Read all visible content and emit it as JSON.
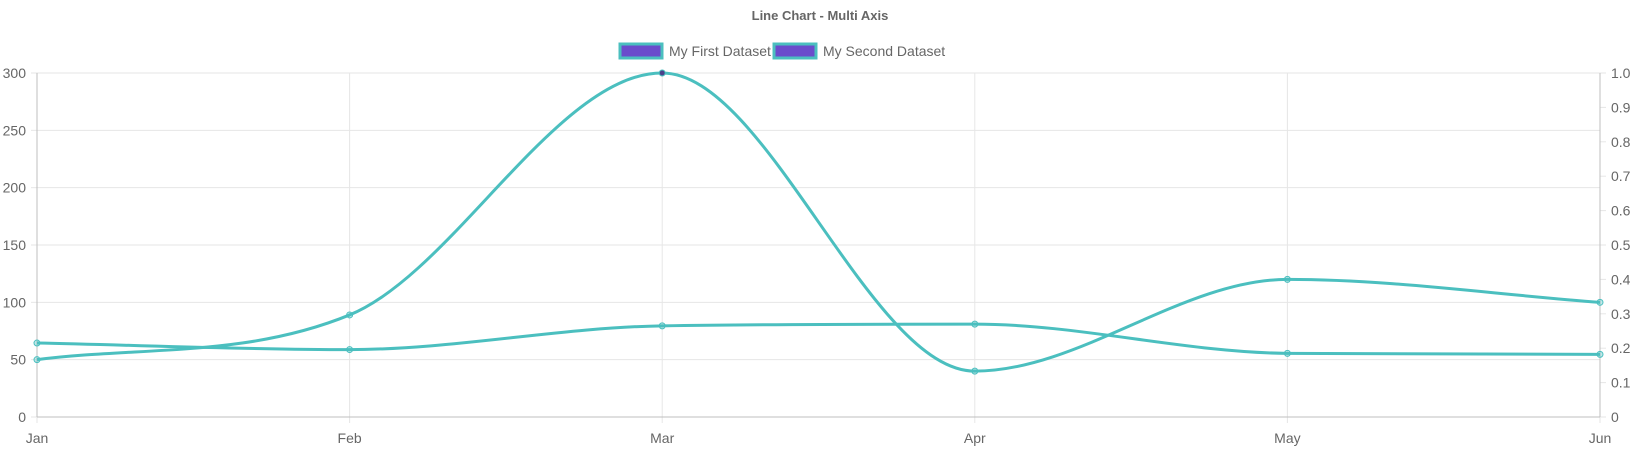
{
  "chart_data": {
    "type": "line",
    "title": "Line Chart - Multi Axis",
    "categories": [
      "Jan",
      "Feb",
      "Mar",
      "Apr",
      "May",
      "Jun"
    ],
    "legend_position": "top",
    "grid": true,
    "series": [
      {
        "name": "My First Dataset",
        "axis": "left",
        "values": [
          50,
          89,
          300,
          40,
          120,
          100
        ],
        "line_color": "#4bbfbf",
        "legend_fill": "#6a4ccc"
      },
      {
        "name": "My Second Dataset",
        "axis": "right",
        "values": [
          0.215,
          0.196,
          0.265,
          0.27,
          0.185,
          0.182
        ],
        "line_color": "#4bbfbf",
        "legend_fill": "#6a4ccc"
      }
    ],
    "y_left": {
      "ylim": [
        0,
        300
      ],
      "ticks": [
        "0",
        "50",
        "100",
        "150",
        "200",
        "250",
        "300"
      ],
      "tick_values": [
        0,
        50,
        100,
        150,
        200,
        250,
        300
      ]
    },
    "y_right": {
      "ylim": [
        0,
        1
      ],
      "ticks": [
        "0",
        "0.1",
        "0.2",
        "0.3",
        "0.4",
        "0.5",
        "0.6",
        "0.7",
        "0.8",
        "0.9",
        "1.0"
      ],
      "tick_values": [
        0,
        0.1,
        0.2,
        0.3,
        0.4,
        0.5,
        0.6,
        0.7,
        0.8,
        0.9,
        1.0
      ]
    }
  }
}
